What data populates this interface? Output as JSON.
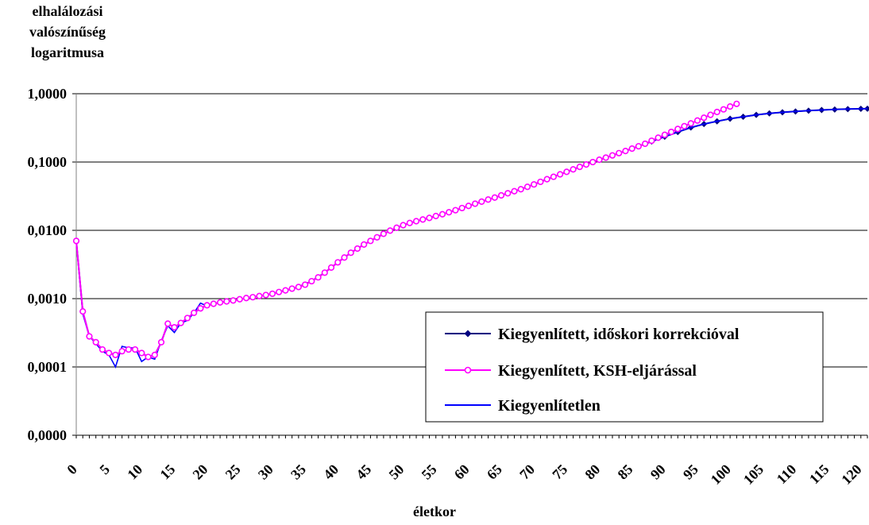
{
  "chart_data": {
    "type": "line",
    "title": "",
    "ylabel_lines": [
      "elhalálozási",
      "valószínűség",
      "logaritmusa"
    ],
    "xlabel": "életkor",
    "y_scale": "log",
    "y_ticks": [
      {
        "value": 1,
        "label": "1,0000"
      },
      {
        "value": 0.1,
        "label": "0,1000"
      },
      {
        "value": 0.01,
        "label": "0,0100"
      },
      {
        "value": 0.001,
        "label": "0,0010"
      },
      {
        "value": 0.0001,
        "label": "0,0001"
      },
      {
        "value": 1e-05,
        "label": "0,0000"
      }
    ],
    "ylim": [
      1e-05,
      1
    ],
    "xlim": [
      0,
      121
    ],
    "x_ticks": [
      0,
      5,
      10,
      15,
      20,
      25,
      30,
      35,
      40,
      45,
      50,
      55,
      60,
      65,
      70,
      75,
      80,
      85,
      90,
      95,
      100,
      105,
      110,
      115,
      120
    ],
    "gridlines": true,
    "legend_position": "bottom-right",
    "series": [
      {
        "name": "Kiegyenlített, időskori korrekcióval",
        "color": "#000080",
        "marker": "diamond",
        "x": [
          0,
          1,
          2,
          3,
          4,
          5,
          6,
          7,
          8,
          9,
          10,
          11,
          12,
          13,
          14,
          15,
          16,
          17,
          18,
          19,
          20,
          22,
          24,
          26,
          28,
          30,
          32,
          34,
          36,
          38,
          40,
          42,
          44,
          46,
          48,
          50,
          52,
          54,
          56,
          58,
          60,
          62,
          64,
          66,
          68,
          70,
          72,
          74,
          76,
          78,
          80,
          82,
          84,
          86,
          88,
          90,
          92,
          94,
          96,
          98,
          100,
          102,
          104,
          106,
          108,
          110,
          112,
          114,
          116,
          118,
          120,
          121
        ],
        "y": [
          0.007,
          0.00065,
          0.00028,
          0.00023,
          0.00018,
          0.00016,
          0.00015,
          0.00017,
          0.00018,
          0.00018,
          0.00016,
          0.00014,
          0.00015,
          0.00023,
          0.00043,
          0.00038,
          0.00044,
          0.00052,
          0.00062,
          0.00072,
          0.0008,
          0.00088,
          0.00094,
          0.00102,
          0.00109,
          0.00118,
          0.00132,
          0.00148,
          0.0018,
          0.0024,
          0.0034,
          0.0047,
          0.0062,
          0.0079,
          0.0099,
          0.0119,
          0.0136,
          0.0152,
          0.0172,
          0.0197,
          0.0228,
          0.0263,
          0.0302,
          0.0349,
          0.04,
          0.047,
          0.056,
          0.066,
          0.078,
          0.092,
          0.108,
          0.125,
          0.145,
          0.17,
          0.2,
          0.235,
          0.275,
          0.32,
          0.36,
          0.395,
          0.43,
          0.46,
          0.49,
          0.515,
          0.535,
          0.55,
          0.565,
          0.578,
          0.588,
          0.596,
          0.602,
          0.604
        ]
      },
      {
        "name": "Kiegyenlített, KSH-eljárással",
        "color": "#FF00FF",
        "marker": "circle",
        "x": [
          0,
          1,
          2,
          3,
          4,
          5,
          6,
          7,
          8,
          9,
          10,
          11,
          12,
          13,
          14,
          15,
          16,
          17,
          18,
          19,
          20,
          21,
          22,
          23,
          24,
          25,
          26,
          27,
          28,
          29,
          30,
          31,
          32,
          33,
          34,
          35,
          36,
          37,
          38,
          39,
          40,
          41,
          42,
          43,
          44,
          45,
          46,
          47,
          48,
          49,
          50,
          51,
          52,
          53,
          54,
          55,
          56,
          57,
          58,
          59,
          60,
          61,
          62,
          63,
          64,
          65,
          66,
          67,
          68,
          69,
          70,
          71,
          72,
          73,
          74,
          75,
          76,
          77,
          78,
          79,
          80,
          81,
          82,
          83,
          84,
          85,
          86,
          87,
          88,
          89,
          90,
          91,
          92,
          93,
          94,
          95,
          96,
          97,
          98,
          99,
          100,
          101
        ],
        "y": [
          0.007,
          0.00065,
          0.00028,
          0.00023,
          0.00018,
          0.00016,
          0.00015,
          0.00017,
          0.00018,
          0.00018,
          0.00016,
          0.00014,
          0.00015,
          0.00023,
          0.00043,
          0.00038,
          0.00044,
          0.00052,
          0.00062,
          0.00072,
          0.0008,
          0.00084,
          0.00088,
          0.00091,
          0.00094,
          0.00098,
          0.00102,
          0.00105,
          0.00109,
          0.00113,
          0.00118,
          0.00125,
          0.00132,
          0.0014,
          0.00148,
          0.0016,
          0.0018,
          0.00205,
          0.0024,
          0.00285,
          0.0034,
          0.004,
          0.0047,
          0.0054,
          0.0062,
          0.007,
          0.0079,
          0.0089,
          0.0099,
          0.0109,
          0.0119,
          0.0128,
          0.0136,
          0.0144,
          0.0152,
          0.0162,
          0.0172,
          0.0184,
          0.0197,
          0.0212,
          0.0228,
          0.0245,
          0.0263,
          0.0282,
          0.0302,
          0.0325,
          0.0349,
          0.0374,
          0.04,
          0.0433,
          0.047,
          0.0513,
          0.056,
          0.0608,
          0.066,
          0.0718,
          0.078,
          0.0848,
          0.092,
          0.0998,
          0.108,
          0.116,
          0.125,
          0.135,
          0.145,
          0.157,
          0.17,
          0.185,
          0.205,
          0.227,
          0.25,
          0.276,
          0.305,
          0.335,
          0.368,
          0.405,
          0.445,
          0.49,
          0.54,
          0.59,
          0.65,
          0.71
        ]
      },
      {
        "name": "Kiegyenlítetlen",
        "color": "#0000FF",
        "marker": "none",
        "x": [
          0,
          1,
          2,
          3,
          4,
          5,
          6,
          7,
          8,
          9,
          10,
          11,
          12,
          13,
          14,
          15,
          16,
          17,
          18,
          19,
          20,
          21,
          22,
          23,
          24,
          25,
          26,
          27,
          28,
          29,
          30,
          31,
          32,
          33,
          34,
          35,
          36,
          37,
          38,
          39,
          40,
          41,
          42,
          43,
          44,
          45,
          46,
          47,
          48,
          49,
          50,
          51,
          52,
          53,
          54,
          55,
          56,
          57,
          58,
          59,
          60,
          61,
          62,
          63,
          64,
          65,
          66,
          67,
          68,
          69,
          70,
          71,
          72,
          73,
          74,
          75,
          76,
          77,
          78,
          79,
          80,
          81,
          82,
          83,
          84,
          85,
          86,
          87,
          88,
          89,
          90,
          91,
          92,
          93,
          94,
          95,
          96,
          97,
          98,
          99,
          100,
          101,
          102,
          103,
          104,
          105,
          106,
          107,
          108,
          109,
          110,
          111,
          112,
          113,
          114,
          115,
          116,
          117,
          118,
          119,
          120,
          121
        ],
        "y": [
          0.007,
          0.0006,
          0.00028,
          0.00022,
          0.00017,
          0.00015,
          0.0001,
          0.0002,
          0.00019,
          0.00019,
          0.00012,
          0.00014,
          0.00013,
          0.00024,
          0.0004,
          0.00032,
          0.00044,
          0.00048,
          0.00062,
          0.00086,
          0.00078,
          0.00084,
          0.00088,
          0.00091,
          0.00094,
          0.00098,
          0.00102,
          0.00105,
          0.00109,
          0.00113,
          0.00118,
          0.00125,
          0.00132,
          0.0014,
          0.00148,
          0.0016,
          0.0018,
          0.00205,
          0.0024,
          0.00285,
          0.0034,
          0.004,
          0.0047,
          0.0054,
          0.0062,
          0.007,
          0.0079,
          0.0089,
          0.0099,
          0.0109,
          0.0119,
          0.0128,
          0.0136,
          0.0144,
          0.0152,
          0.0162,
          0.0172,
          0.0184,
          0.0197,
          0.0212,
          0.0228,
          0.0245,
          0.0263,
          0.0282,
          0.0302,
          0.0325,
          0.0349,
          0.0374,
          0.04,
          0.0433,
          0.047,
          0.0513,
          0.056,
          0.0608,
          0.066,
          0.0718,
          0.078,
          0.0848,
          0.092,
          0.0998,
          0.108,
          0.116,
          0.125,
          0.135,
          0.145,
          0.157,
          0.17,
          0.185,
          0.2,
          0.217,
          0.235,
          0.254,
          0.275,
          0.297,
          0.32,
          0.34,
          0.36,
          0.378,
          0.395,
          0.412,
          0.43,
          0.445,
          0.46,
          0.475,
          0.49,
          0.503,
          0.515,
          0.525,
          0.535,
          0.543,
          0.55,
          0.558,
          0.565,
          0.572,
          0.578,
          0.583,
          0.588,
          0.592,
          0.596,
          0.599,
          0.602,
          0.604
        ]
      }
    ]
  }
}
